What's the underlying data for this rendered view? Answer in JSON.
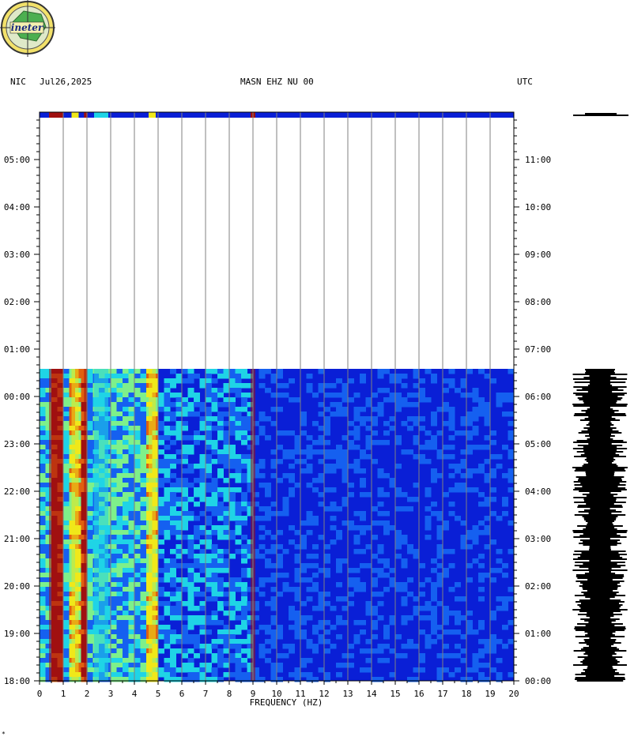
{
  "header": {
    "left_tz": "NIC",
    "date": "Jul26,2025",
    "station": "MASN EHZ NU 00",
    "right_tz": "UTC"
  },
  "logo": {
    "text": "ineter"
  },
  "footer": {
    "mark": "*"
  },
  "colors": {
    "low": "#0a1fd6",
    "mid": "#1fd4e6",
    "high": "#f0e81a",
    "peak": "#a01010",
    "grid": "#808080"
  },
  "chart_data": {
    "type": "heatmap",
    "title": "MASN EHZ NU 00",
    "xlabel": "FREQUENCY (HZ)",
    "ylabel": "",
    "xlim": [
      0,
      20
    ],
    "x_ticks": [
      "0",
      "1",
      "2",
      "3",
      "4",
      "5",
      "6",
      "7",
      "8",
      "9",
      "10",
      "11",
      "12",
      "13",
      "14",
      "15",
      "16",
      "17",
      "18",
      "19",
      "20"
    ],
    "left_time_labels": [
      "05:00",
      "04:00",
      "03:00",
      "02:00",
      "01:00",
      "00:00",
      "23:00",
      "22:00",
      "21:00",
      "20:00",
      "19:00",
      "18:00"
    ],
    "right_time_labels": [
      "11:00",
      "10:00",
      "09:00",
      "08:00",
      "07:00",
      "06:00",
      "05:00",
      "04:00",
      "03:00",
      "02:00",
      "01:00",
      "00:00"
    ],
    "data_start_local": "18:00",
    "data_gap_local": [
      "00:35",
      "05:55"
    ],
    "strong_bands_hz": [
      {
        "center": 0.7,
        "width": 0.6,
        "level": "peak"
      },
      {
        "center": 1.5,
        "width": 0.3,
        "level": "high"
      },
      {
        "center": 1.95,
        "width": 0.15,
        "level": "peak"
      },
      {
        "center": 2.6,
        "width": 0.6,
        "level": "mid"
      },
      {
        "center": 4.75,
        "width": 0.3,
        "level": "high"
      },
      {
        "center": 9.0,
        "width": 0.2,
        "level": "peak"
      }
    ]
  }
}
